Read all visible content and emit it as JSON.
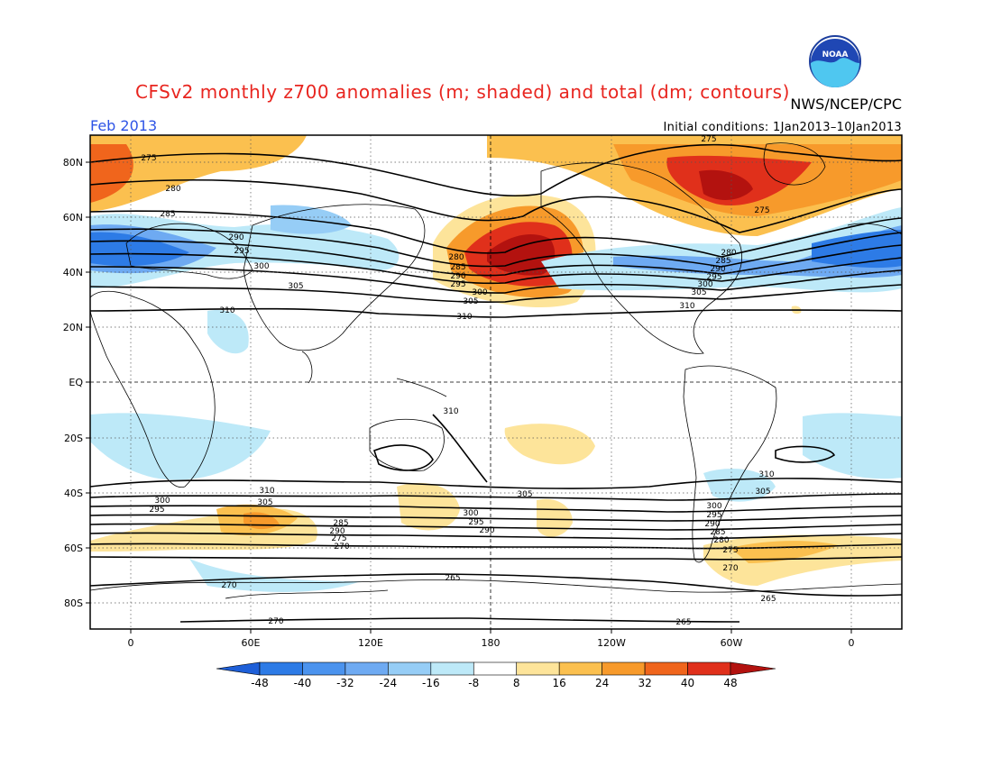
{
  "title": "CFSv2 monthly z700 anomalies (m; shaded) and total (dm; contours)",
  "valid_month": "Feb 2013",
  "initial_conditions": "Initial conditions: 1Jan2013–10Jan2013",
  "agency": "NWS/NCEP/CPC",
  "logo_text": "NOAA",
  "lat_ticks": [
    "80N",
    "60N",
    "40N",
    "20N",
    "EQ",
    "20S",
    "40S",
    "60S",
    "80S"
  ],
  "lon_ticks": [
    "0",
    "60E",
    "120E",
    "180",
    "120W",
    "60W",
    "0"
  ],
  "colorbar": {
    "ticks": [
      "-48",
      "-40",
      "-32",
      "-24",
      "-16",
      "-8",
      "8",
      "16",
      "24",
      "32",
      "40",
      "48"
    ],
    "colors": [
      "#1e5fd8",
      "#2d7be6",
      "#4b93ee",
      "#6eaaf2",
      "#96cdf6",
      "#bde9f8",
      "#ffffff",
      "#fde49a",
      "#fbc04f",
      "#f79a2b",
      "#f0651c",
      "#e0301b",
      "#b3120f"
    ]
  },
  "contour_labels": [
    "275",
    "280",
    "285",
    "290",
    "295",
    "300",
    "305",
    "310",
    "265",
    "270"
  ]
}
